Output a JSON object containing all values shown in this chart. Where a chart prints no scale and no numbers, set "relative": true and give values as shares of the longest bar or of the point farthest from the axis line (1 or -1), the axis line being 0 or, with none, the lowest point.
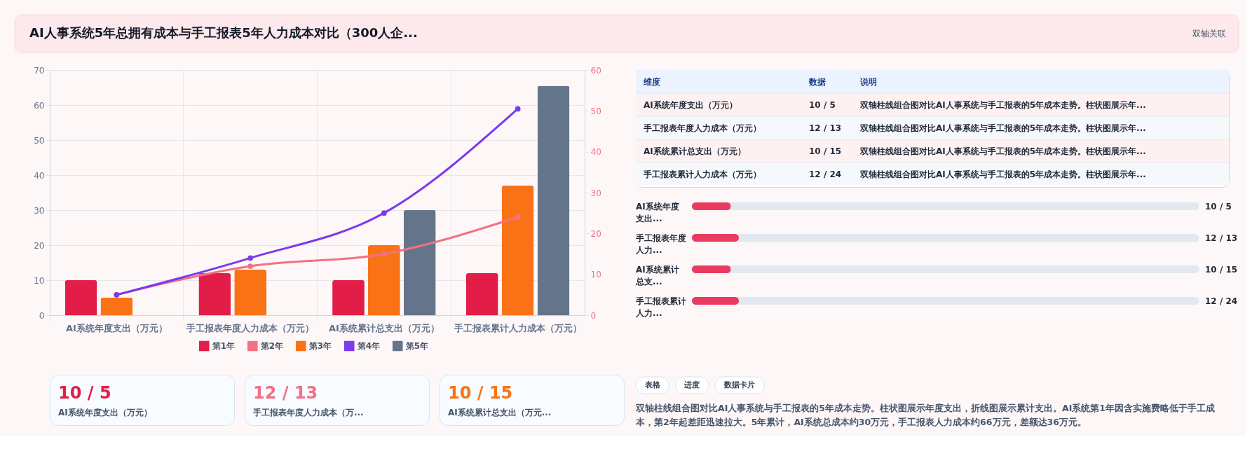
{
  "chart_data": [
    {
      "type": "bar",
      "title": "AI人事系统5年总拥有成本与手工报表5年人力成本对比（300人企...",
      "annotations": [
        "双轴关联"
      ],
      "categories": [
        "AI系统年度支出（万元）",
        "手工报表年度人力成本（万元）",
        "AI系统累计总支出（万元）",
        "手工报表累计人力成本（万元）"
      ],
      "series": [
        {
          "name": "第1年",
          "color": "#e11d48",
          "values": [
            10,
            12,
            10,
            12
          ]
        },
        {
          "name": "第2年",
          "type": "line",
          "axis": "y2",
          "color": "#f17282",
          "values": [
            5,
            12,
            15,
            24
          ]
        },
        {
          "name": "第3年",
          "color": "#f97316",
          "values": [
            5,
            13,
            20,
            37
          ]
        },
        {
          "name": "第4年",
          "type": "line",
          "axis": "y2",
          "color": "#7c3aed",
          "values": [
            5,
            14,
            25,
            50.5
          ]
        },
        {
          "name": "第5年",
          "color": "#64748b",
          "values": [
            null,
            null,
            30,
            65.5
          ]
        }
      ],
      "ylim": [
        0,
        70
      ],
      "yticks": [
        0,
        10,
        20,
        30,
        40,
        50,
        60,
        70
      ],
      "y2lim": [
        0,
        60
      ],
      "y2ticks": [
        0,
        10,
        20,
        30,
        40,
        50,
        60
      ],
      "grid": true,
      "legend": "bottom",
      "marker": "circle",
      "line_style": "solid"
    },
    {
      "type": "other",
      "annotations": [
        "维度",
        "数据",
        "说明",
        "AI系统年度支出（万元）",
        "10 / 5",
        "双轴柱线组合图对比AI人事系统与手工报表的5年成本走势。柱状图展示年...",
        "手工报表年度人力成本（万元）",
        "12 / 13",
        "双轴柱线组合图对比AI人事系统与手工报表的5年成本走势。柱状图展示年...",
        "AI系统累计总支出（万元）",
        "10 / 15",
        "双轴柱线组合图对比AI人事系统与手工报表的5年成本走势。柱状图展示年...",
        "手工报表累计人力成本（万元）",
        "12 / 24",
        "双轴柱线组合图对比AI人事系统与手工报表的5年成本走势。柱状图展示年..."
      ]
    },
    {
      "type": "bar",
      "orientation": "horizontal",
      "relative": true,
      "categories": [
        "AI系统年度支出...",
        "手工报表年度人力...",
        "AI系统累计总支...",
        "手工报表累计人力..."
      ],
      "values": [
        0.83,
        1,
        0.83,
        1
      ],
      "annotations": [
        "10 / 5",
        "12 / 13",
        "10 / 15",
        "12 / 24"
      ],
      "color": "#ea3a5f",
      "tick_labels": "y"
    },
    {
      "type": "other",
      "annotations": [
        "10 / 5",
        "AI系统年度支出（万元）",
        "12 / 13",
        "手工报表年度人力成本（万...",
        "10 / 15",
        "AI系统累计总支出（万元..."
      ],
      "colors": [
        "#e11d48",
        "#f17282",
        "#f97316"
      ]
    },
    {
      "type": "other",
      "annotations": [
        "表格",
        "进度",
        "数据卡片",
        "双轴柱线组合图对比AI人事系统与手工报表的5年成本走势。柱状图展示年度支出，折线图展示累计支出。AI系统第1年因含实施费略低于手工成本，第2年起差距迅速拉大。5年累计，AI系统总成本约30万元，手工报表人力成本约66万元，差额达36万元。"
      ]
    }
  ]
}
